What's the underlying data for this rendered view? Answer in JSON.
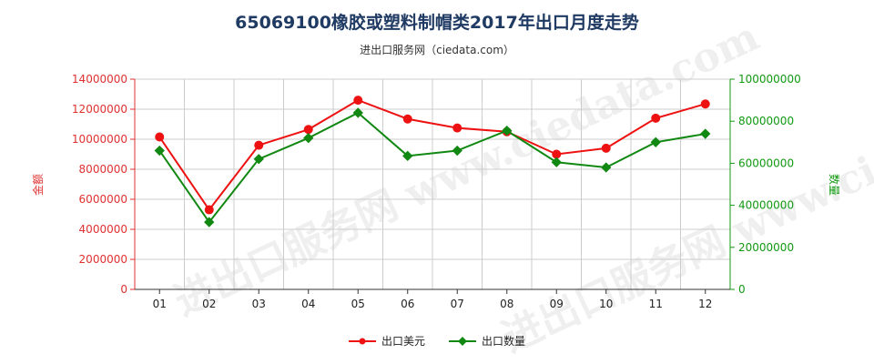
{
  "title": "65069100橡胶或塑料制帽类2017年出口月度走势",
  "subtitle": "进出口服务网（ciedata.com）",
  "watermark": "进出口服务网 www.ciedata.com",
  "colors": {
    "value": "#ee1111",
    "quantity": "#118811",
    "left_axis": "#e03030",
    "right_axis": "#119911"
  },
  "chart_data": {
    "type": "line",
    "categories": [
      "01",
      "02",
      "03",
      "04",
      "05",
      "06",
      "07",
      "08",
      "09",
      "10",
      "11",
      "12"
    ],
    "left_axis": {
      "label": "金额",
      "min": 0,
      "max": 14000000,
      "ticks": [
        0,
        2000000,
        4000000,
        6000000,
        8000000,
        10000000,
        12000000,
        14000000
      ]
    },
    "right_axis": {
      "label": "数量",
      "min": 0,
      "max": 100000000,
      "ticks": [
        0,
        20000000,
        40000000,
        60000000,
        80000000,
        100000000
      ]
    },
    "grid": true,
    "legend": "bottom",
    "series": [
      {
        "name": "出口美元",
        "axis": "left",
        "values": [
          10150000,
          5300000,
          9600000,
          10650000,
          12600000,
          11350000,
          10750000,
          10500000,
          9000000,
          9400000,
          11400000,
          12350000
        ]
      },
      {
        "name": "出口数量",
        "axis": "right",
        "values": [
          66000000,
          32000000,
          62000000,
          72000000,
          84000000,
          63500000,
          66000000,
          75500000,
          60500000,
          58000000,
          70000000,
          74000000
        ]
      }
    ]
  }
}
